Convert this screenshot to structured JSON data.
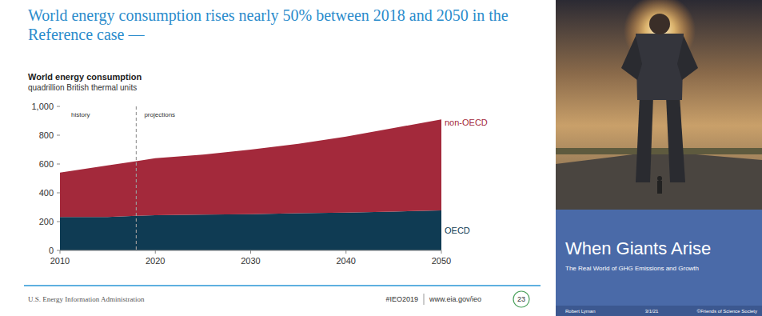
{
  "chart_data": {
    "type": "area",
    "stacked": true,
    "grid": false,
    "title": "World energy consumption rises nearly 50% between 2018 and 2050 in the Reference case —",
    "subtitle": "World energy consumption",
    "y_label": "quadrillion British thermal units",
    "x": [
      2010,
      2015,
      2018,
      2020,
      2025,
      2030,
      2035,
      2040,
      2045,
      2050
    ],
    "series": [
      {
        "name": "OECD",
        "color": "#0f3b53",
        "values": [
          232,
          232,
          240,
          245,
          248,
          252,
          258,
          263,
          270,
          278
        ]
      },
      {
        "name": "non-OECD",
        "color": "#a3293b",
        "values": [
          308,
          358,
          380,
          395,
          417,
          448,
          482,
          527,
          580,
          632
        ]
      }
    ],
    "xlim": [
      2010,
      2050
    ],
    "xticks": [
      2010,
      2020,
      2030,
      2040,
      2050
    ],
    "ylim": [
      0,
      1000
    ],
    "yticks": [
      0,
      200,
      400,
      600,
      800,
      {
        "value": 1000,
        "label": "1,000"
      }
    ],
    "annotations": {
      "divider_x": 2018,
      "left": "history",
      "right": "projections"
    }
  },
  "slide_footer": {
    "source": "U.S. Energy Information Administration",
    "tag": "#IEO2019",
    "url": "www.eia.gov/ieo",
    "page": "23"
  },
  "cover": {
    "title": "When Giants Arise",
    "subtitle": "The Real World of GHG Emissions and Growth",
    "author": "Robert Lyman",
    "date": "3/1/21",
    "credit": "©Friends of Science Society"
  }
}
